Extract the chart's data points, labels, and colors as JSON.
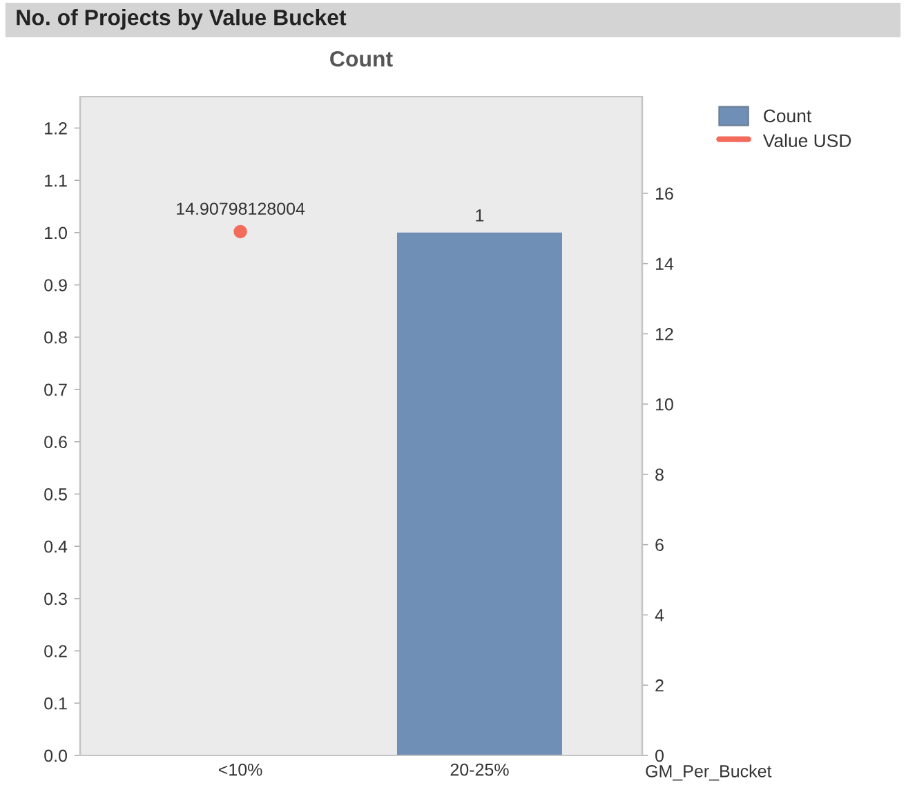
{
  "chart_data": {
    "type": "bar",
    "title": "No. of Projects by Value Bucket",
    "subtitle": "Count",
    "xlabel": "GM_Per_Bucket",
    "categories": [
      "<10%",
      "20-25%"
    ],
    "series": [
      {
        "name": "Count",
        "color": "#6f8fb6",
        "values": [
          null,
          1
        ]
      },
      {
        "name": "Value USD",
        "type": "line",
        "axis": "y2",
        "color": "#f26b5b",
        "marker": "circle",
        "values": [
          14.90798128004,
          null
        ]
      }
    ],
    "ylim": [
      0,
      1.26
    ],
    "yticks": [
      {
        "value": 0,
        "label": "0.0"
      },
      0.1,
      0.2,
      0.3,
      0.4,
      0.5,
      0.6,
      0.7,
      0.8,
      0.9,
      {
        "value": 1,
        "label": "1.0"
      },
      1.1,
      1.2
    ],
    "y2lim": [
      0,
      18.75
    ],
    "y2ticks": [
      0,
      2,
      4,
      6,
      8,
      10,
      12,
      14,
      16
    ],
    "data_labels": true,
    "legend": "top right",
    "grid": false
  }
}
